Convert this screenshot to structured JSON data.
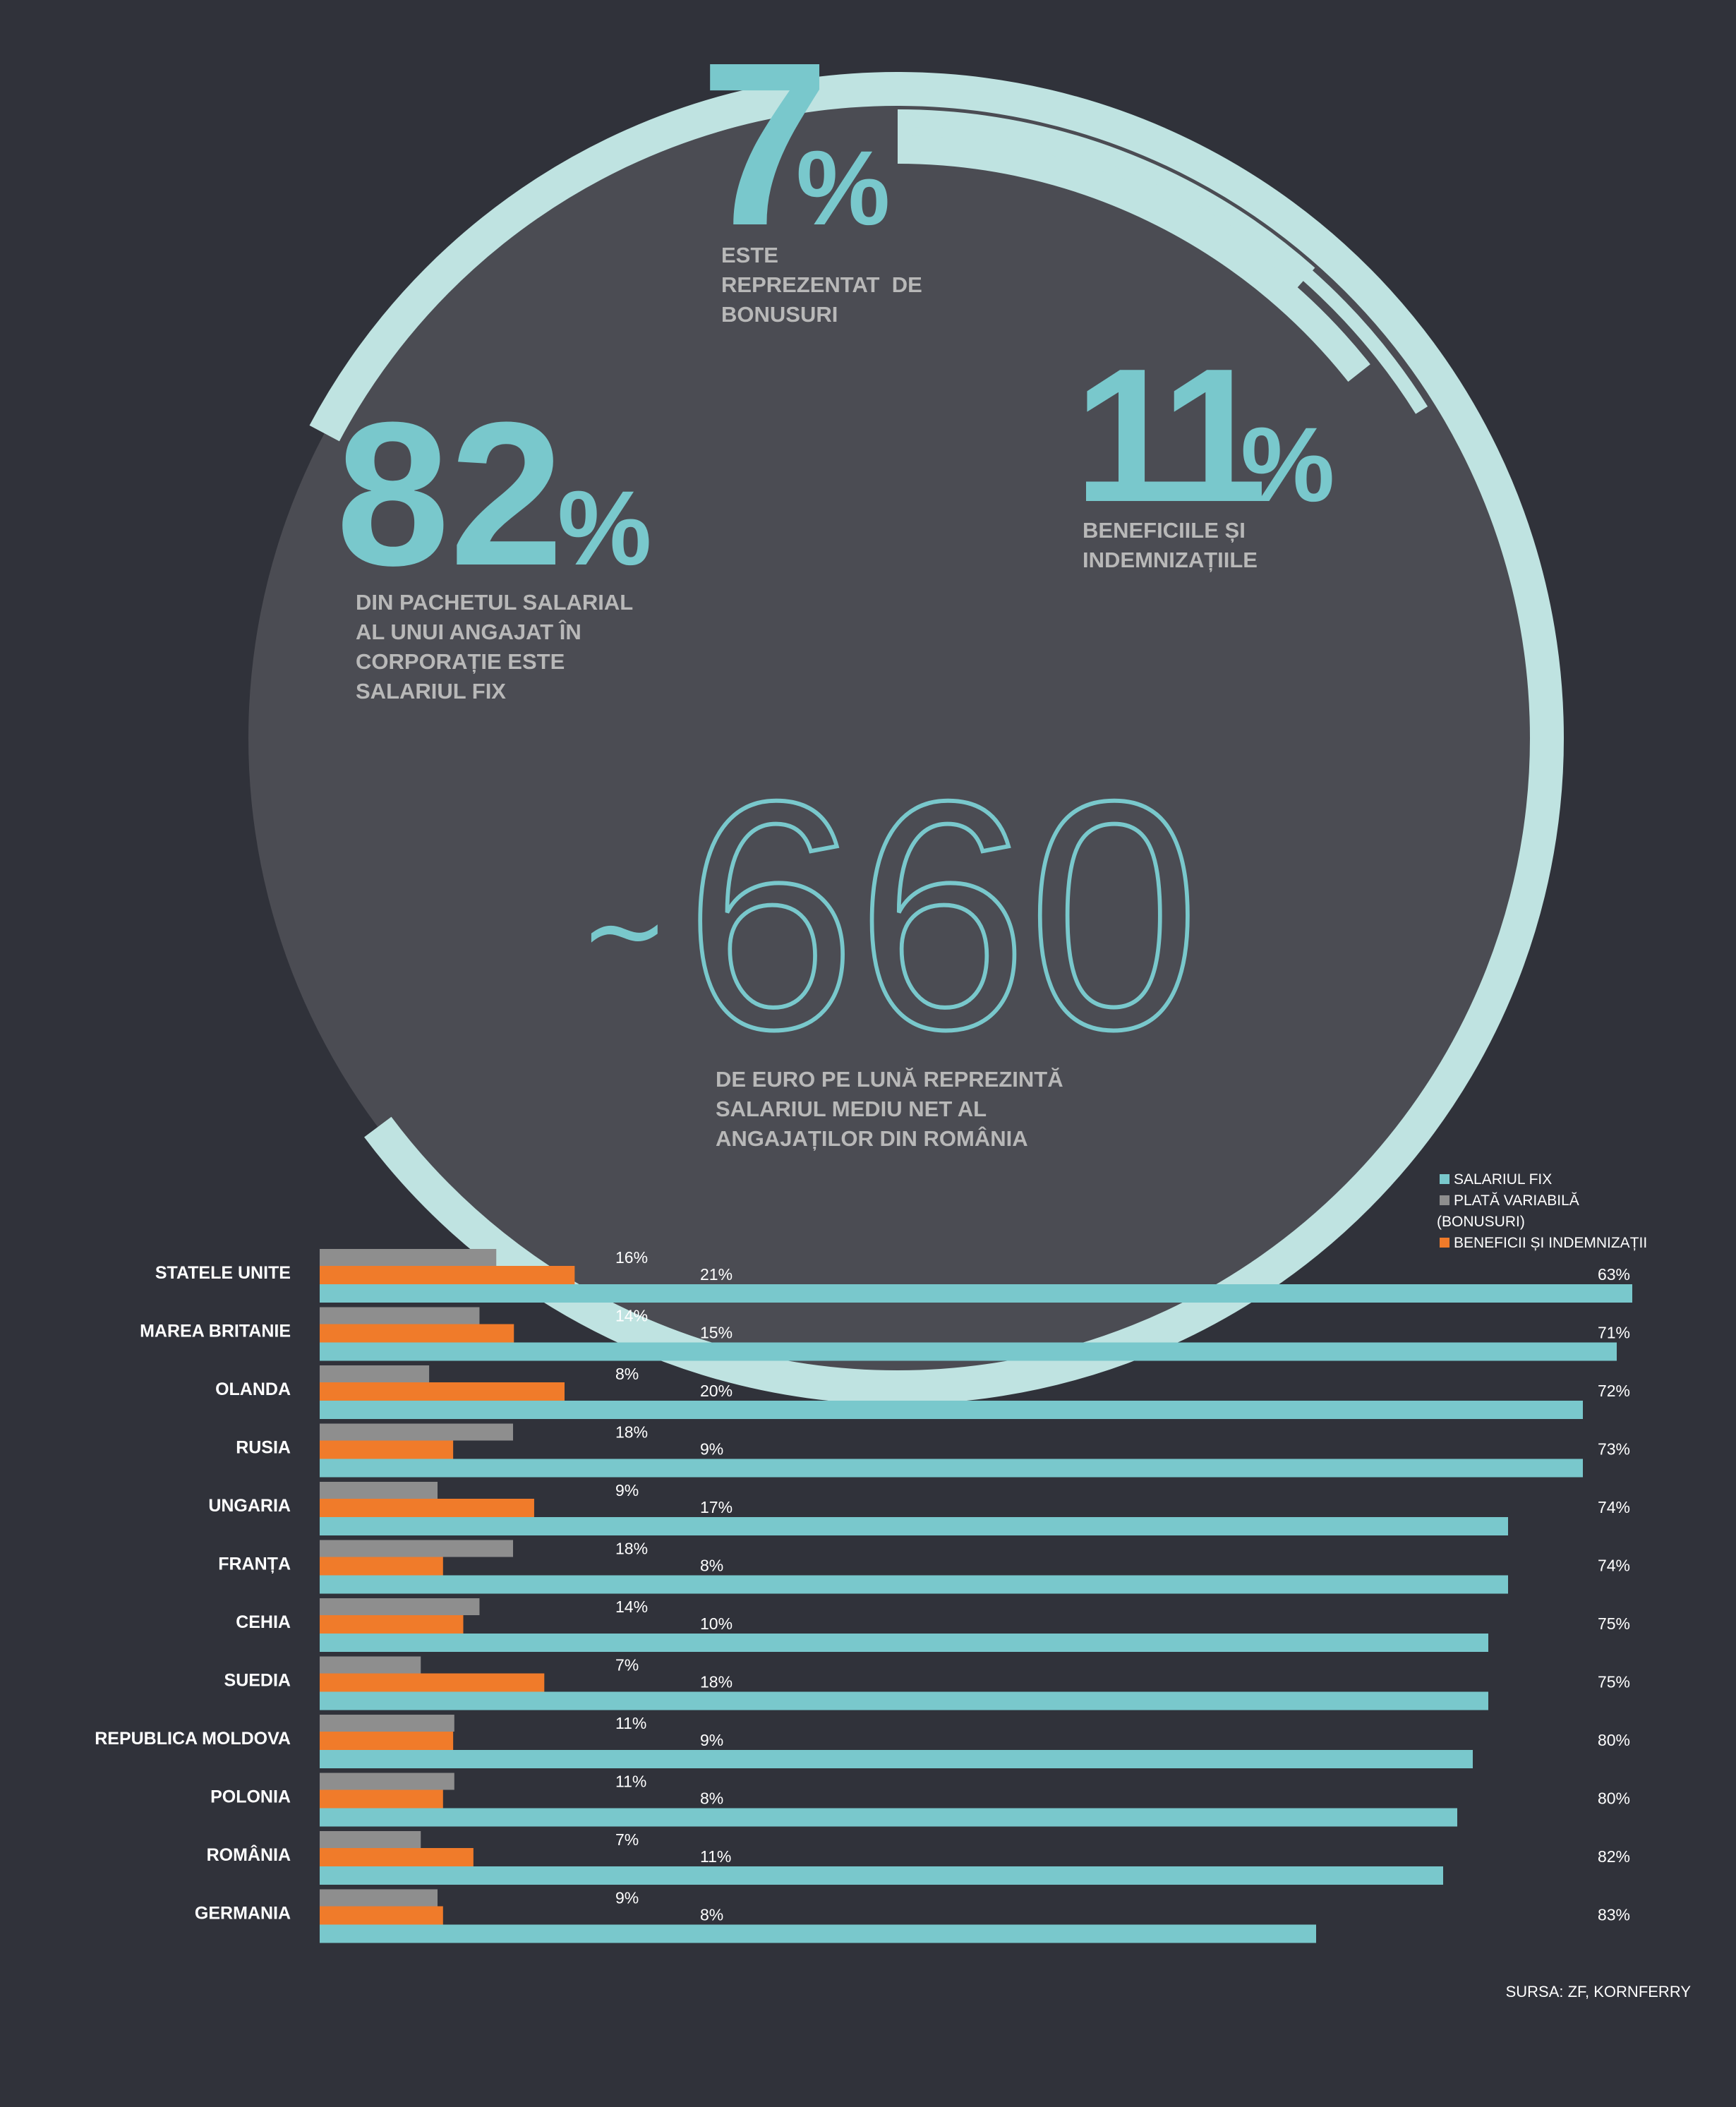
{
  "colors": {
    "background": "#30323a",
    "circle_fill": "#4b4c53",
    "ring": "#bfe3e1",
    "teal": "#79c8cc",
    "grey_bar": "#8e8e8e",
    "orange_bar": "#f07b2a",
    "label_grey": "#b8b8b8",
    "text_white": "#ffffff"
  },
  "headline": {
    "stat_bonus": {
      "value": "7",
      "unit": "%",
      "caption": [
        "ESTE",
        "REPREZENTAT  DE",
        "BONUSURI"
      ]
    },
    "stat_benefits": {
      "value": "11",
      "unit": "%",
      "caption": [
        "BENEFICIILE ȘI",
        "INDEMNIZAȚIILE"
      ]
    },
    "stat_fixed": {
      "value": "82",
      "unit": "%",
      "caption": [
        "DIN PACHETUL SALARIAL",
        "AL UNUI ANGAJAT ÎN",
        "CORPORAȚIE ESTE",
        "SALARIUL FIX"
      ]
    },
    "stat_salary": {
      "prefix": "~",
      "value": "660",
      "caption": [
        "DE EURO PE LUNĂ REPREZINTĂ",
        "SALARIUL MEDIU NET AL",
        "ANGAJAȚILOR DIN ROMÂNIA"
      ]
    }
  },
  "chart_data": [
    {
      "type": "pie",
      "title": "",
      "slices": [
        {
          "name": "Salariul fix",
          "value": 82
        },
        {
          "name": "Beneficii și indemnizații",
          "value": 11
        },
        {
          "name": "Bonusuri",
          "value": 7
        }
      ]
    },
    {
      "type": "bar",
      "orientation": "horizontal",
      "legend_position": "top-right",
      "legend": [
        {
          "name": "SALARIUL FIX",
          "color": "#79c8cc"
        },
        {
          "name": "PLATĂ VARIABILĂ (BONUSURI)",
          "color": "#8e8e8e"
        },
        {
          "name": "BENEFICII ȘI INDEMNIZAȚII",
          "color": "#f07b2a"
        }
      ],
      "categories": [
        "STATELE UNITE",
        "MAREA BRITANIE",
        "OLANDA",
        "RUSIA",
        "UNGARIA",
        "FRANȚA",
        "CEHIA",
        "SUEDIA",
        "REPUBLICA MOLDOVA",
        "POLONIA",
        "ROMÂNIA",
        "GERMANIA"
      ],
      "series": [
        {
          "name": "PLATĂ VARIABILĂ (BONUSURI)",
          "values": [
            16,
            14,
            8,
            18,
            9,
            18,
            14,
            7,
            11,
            11,
            7,
            9
          ],
          "labels": [
            "16%",
            "14%",
            "8%",
            "18%",
            "9%",
            "18%",
            "14%",
            "7%",
            "11%",
            "11%",
            "7%",
            "9%"
          ]
        },
        {
          "name": "BENEFICII ȘI INDEMNIZAȚII",
          "values": [
            21,
            15,
            20,
            9,
            17,
            8,
            10,
            18,
            9,
            8,
            11,
            8
          ],
          "labels": [
            "21%",
            "15%",
            "20%",
            "9%",
            "17%",
            "8%",
            "10%",
            "18%",
            "9%",
            "8%",
            "11%",
            "8%"
          ]
        },
        {
          "name": "SALARIUL FIX",
          "values": [
            63,
            71,
            72,
            73,
            74,
            74,
            75,
            75,
            80,
            80,
            82,
            83
          ],
          "labels": [
            "63%",
            "71%",
            "72%",
            "73%",
            "74%",
            "74%",
            "75%",
            "75%",
            "80%",
            "80%",
            "82%",
            "83%"
          ]
        }
      ]
    }
  ],
  "source": "SURSA: ZF, KORNFERRY"
}
